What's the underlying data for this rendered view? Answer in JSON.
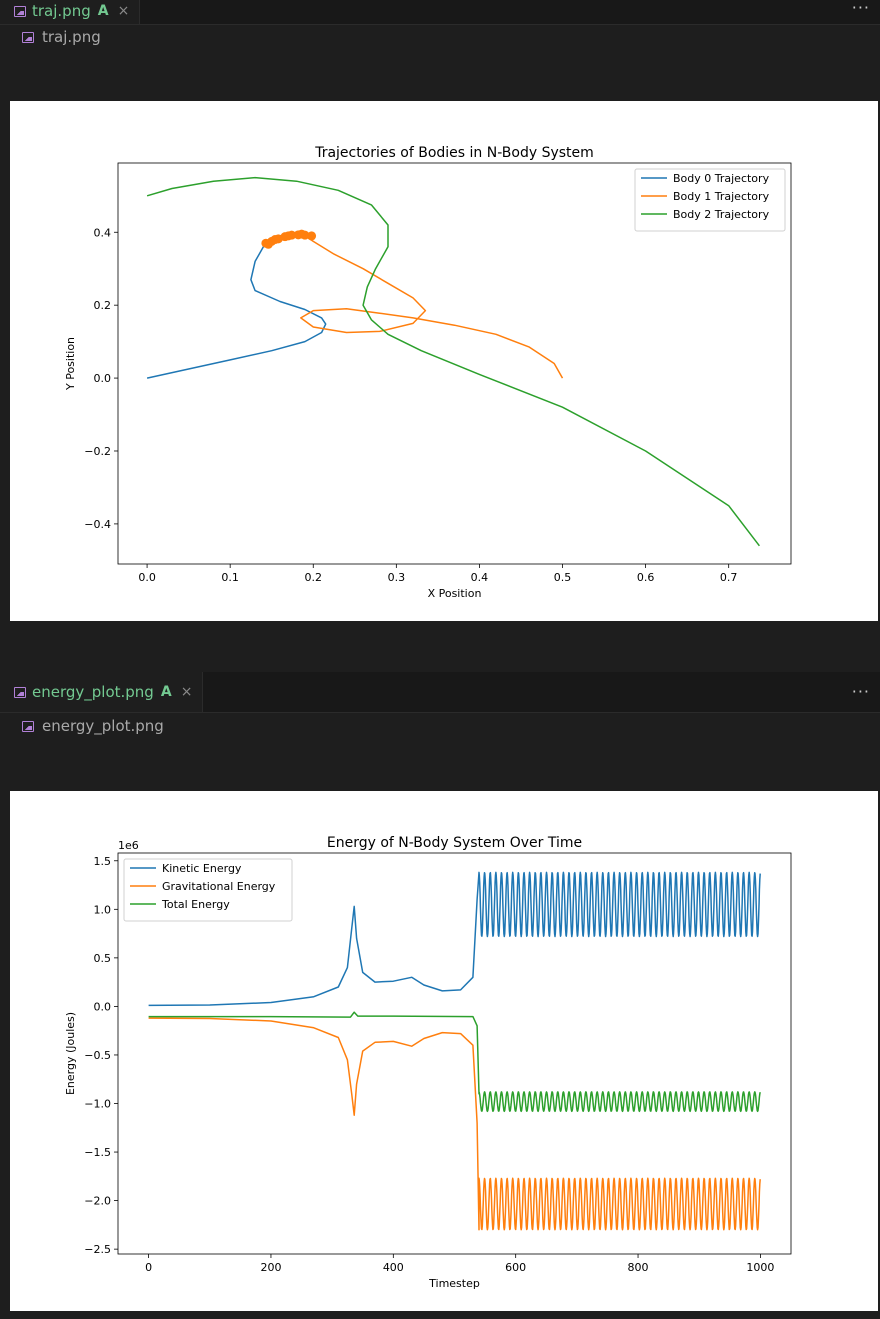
{
  "pane1": {
    "tab": {
      "filename": "traj.png",
      "modified": "A",
      "close": "×"
    },
    "more": "···",
    "breadcrumb": "traj.png"
  },
  "pane2": {
    "tab": {
      "filename": "energy_plot.png",
      "modified": "A",
      "close": "×"
    },
    "more": "···",
    "breadcrumb": "energy_plot.png"
  },
  "chart_data": [
    {
      "type": "line",
      "title": "Trajectories of Bodies in N-Body System",
      "xlabel": "X Position",
      "ylabel": "Y Position",
      "xlim": [
        -0.035,
        0.775
      ],
      "ylim": [
        -0.51,
        0.59
      ],
      "xticks": [
        "0.0",
        "0.1",
        "0.2",
        "0.3",
        "0.4",
        "0.5",
        "0.6",
        "0.7"
      ],
      "yticks": [
        "−0.4",
        "−0.2",
        "0.0",
        "0.2",
        "0.4"
      ],
      "legend": "top-right",
      "grid": false,
      "series": [
        {
          "name": "Body 0 Trajectory",
          "color": "#1f77b4",
          "points": [
            [
              0,
              0
            ],
            [
              0.05,
              0.025
            ],
            [
              0.1,
              0.05
            ],
            [
              0.15,
              0.075
            ],
            [
              0.19,
              0.1
            ],
            [
              0.21,
              0.125
            ],
            [
              0.215,
              0.148
            ],
            [
              0.21,
              0.165
            ],
            [
              0.19,
              0.188
            ],
            [
              0.16,
              0.21
            ],
            [
              0.13,
              0.24
            ],
            [
              0.125,
              0.27
            ],
            [
              0.13,
              0.32
            ],
            [
              0.14,
              0.36
            ],
            [
              0.16,
              0.39
            ],
            [
              0.18,
              0.4
            ],
            [
              0.2,
              0.395
            ],
            [
              0.2,
              0.39
            ]
          ]
        },
        {
          "name": "Body 1 Trajectory",
          "color": "#ff7f0e",
          "points": [
            [
              0.5,
              0
            ],
            [
              0.49,
              0.04
            ],
            [
              0.46,
              0.085
            ],
            [
              0.42,
              0.12
            ],
            [
              0.37,
              0.145
            ],
            [
              0.32,
              0.165
            ],
            [
              0.28,
              0.178
            ],
            [
              0.24,
              0.19
            ],
            [
              0.2,
              0.185
            ],
            [
              0.185,
              0.165
            ],
            [
              0.2,
              0.14
            ],
            [
              0.24,
              0.125
            ],
            [
              0.28,
              0.128
            ],
            [
              0.32,
              0.15
            ],
            [
              0.335,
              0.185
            ],
            [
              0.32,
              0.22
            ],
            [
              0.29,
              0.26
            ],
            [
              0.26,
              0.3
            ],
            [
              0.225,
              0.34
            ],
            [
              0.2,
              0.375
            ],
            [
              0.19,
              0.39
            ]
          ]
        },
        {
          "name": "Body 2 Trajectory",
          "color": "#2ca02c",
          "points": [
            [
              0,
              0.5
            ],
            [
              0.03,
              0.52
            ],
            [
              0.08,
              0.54
            ],
            [
              0.13,
              0.55
            ],
            [
              0.18,
              0.54
            ],
            [
              0.23,
              0.515
            ],
            [
              0.27,
              0.475
            ],
            [
              0.29,
              0.42
            ],
            [
              0.29,
              0.36
            ],
            [
              0.275,
              0.3
            ],
            [
              0.265,
              0.25
            ],
            [
              0.26,
              0.2
            ],
            [
              0.27,
              0.16
            ],
            [
              0.29,
              0.12
            ],
            [
              0.33,
              0.075
            ],
            [
              0.4,
              0.01
            ],
            [
              0.5,
              -0.08
            ],
            [
              0.6,
              -0.2
            ],
            [
              0.7,
              -0.35
            ],
            [
              0.737,
              -0.46
            ]
          ]
        }
      ]
    },
    {
      "type": "line",
      "title": "Energy of N-Body System Over Time",
      "xlabel": "Timestep",
      "ylabel": "Energy (Joules)",
      "scale_label": "1e6",
      "xlim": [
        -50,
        1050
      ],
      "ylim": [
        -2.55,
        1.58
      ],
      "xticks": [
        "0",
        "200",
        "400",
        "600",
        "800",
        "1000"
      ],
      "yticks": [
        "−2.5",
        "−2.0",
        "−1.5",
        "−1.0",
        "−0.5",
        "0.0",
        "0.5",
        "1.0",
        "1.5"
      ],
      "legend": "top-left",
      "grid": false,
      "series": [
        {
          "name": "Kinetic Energy",
          "color": "#1f77b4",
          "points": [
            [
              0,
              0.01
            ],
            [
              100,
              0.015
            ],
            [
              200,
              0.04
            ],
            [
              270,
              0.1
            ],
            [
              310,
              0.2
            ],
            [
              325,
              0.4
            ],
            [
              332,
              0.8
            ],
            [
              336,
              1.03
            ],
            [
              340,
              0.7
            ],
            [
              350,
              0.35
            ],
            [
              370,
              0.25
            ],
            [
              400,
              0.26
            ],
            [
              430,
              0.3
            ],
            [
              450,
              0.22
            ],
            [
              480,
              0.16
            ],
            [
              510,
              0.17
            ],
            [
              530,
              0.3
            ],
            [
              537,
              1.1
            ],
            [
              540,
              1.38
            ]
          ],
          "oscillation": {
            "start": 540,
            "end": 1000,
            "period": 9.2,
            "max": 1.38,
            "min": 0.72
          }
        },
        {
          "name": "Gravitational Energy",
          "color": "#ff7f0e",
          "points": [
            [
              0,
              -0.12
            ],
            [
              100,
              -0.125
            ],
            [
              200,
              -0.15
            ],
            [
              270,
              -0.22
            ],
            [
              310,
              -0.32
            ],
            [
              325,
              -0.55
            ],
            [
              332,
              -0.9
            ],
            [
              336,
              -1.12
            ],
            [
              340,
              -0.8
            ],
            [
              350,
              -0.46
            ],
            [
              370,
              -0.37
            ],
            [
              400,
              -0.36
            ],
            [
              430,
              -0.41
            ],
            [
              450,
              -0.33
            ],
            [
              480,
              -0.27
            ],
            [
              510,
              -0.28
            ],
            [
              530,
              -0.4
            ],
            [
              537,
              -1.2
            ],
            [
              540,
              -2.3
            ]
          ],
          "oscillation": {
            "start": 540,
            "end": 1000,
            "period": 9.2,
            "max": -1.77,
            "min": -2.3
          }
        },
        {
          "name": "Total Energy",
          "color": "#2ca02c",
          "points": [
            [
              0,
              -0.105
            ],
            [
              200,
              -0.105
            ],
            [
              330,
              -0.11
            ],
            [
              336,
              -0.06
            ],
            [
              342,
              -0.1
            ],
            [
              400,
              -0.1
            ],
            [
              530,
              -0.105
            ],
            [
              537,
              -0.2
            ],
            [
              540,
              -0.9
            ]
          ],
          "oscillation": {
            "start": 540,
            "end": 1000,
            "period": 9.2,
            "max": -0.88,
            "min": -1.08
          }
        }
      ]
    }
  ]
}
